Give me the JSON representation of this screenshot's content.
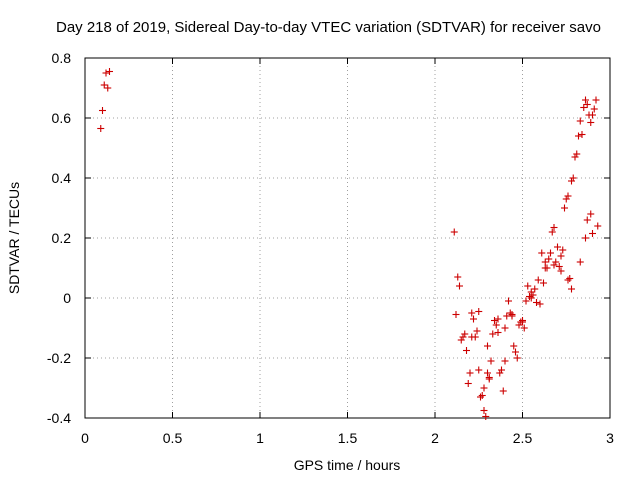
{
  "chart_data": {
    "type": "scatter",
    "title": "Day 218 of 2019, Sidereal Day-to-day VTEC variation (SDTVAR) for receiver savo",
    "xlabel": "GPS time / hours",
    "ylabel": "SDTVAR / TECUs",
    "xlim": [
      0,
      3
    ],
    "ylim": [
      -0.4,
      0.8
    ],
    "xticks": [
      0,
      0.5,
      1,
      1.5,
      2,
      2.5,
      3
    ],
    "xtick_labels": [
      "0",
      "0.5",
      "1",
      "1.5",
      "2",
      "2.5",
      "3"
    ],
    "yticks": [
      -0.4,
      -0.2,
      0,
      0.2,
      0.4,
      0.6,
      0.8
    ],
    "ytick_labels": [
      "-0.4",
      "-0.2",
      "0",
      "0.2",
      "0.4",
      "0.6",
      "0.8"
    ],
    "grid": true,
    "marker": "+",
    "color": "#cc0000",
    "series": [
      {
        "name": "SDTVAR",
        "x": [
          0.09,
          0.1,
          0.11,
          0.12,
          0.13,
          0.14,
          2.11,
          2.12,
          2.13,
          2.14,
          2.15,
          2.16,
          2.17,
          2.18,
          2.19,
          2.2,
          2.21,
          2.22,
          2.23,
          2.24,
          2.25,
          2.26,
          2.27,
          2.28,
          2.29,
          2.3,
          2.31,
          2.32,
          2.33,
          2.34,
          2.35,
          2.36,
          2.37,
          2.38,
          2.39,
          2.4,
          2.41,
          2.42,
          2.43,
          2.44,
          2.45,
          2.46,
          2.47,
          2.48,
          2.49,
          2.5,
          2.51,
          2.52,
          2.53,
          2.54,
          2.55,
          2.56,
          2.57,
          2.58,
          2.59,
          2.6,
          2.61,
          2.62,
          2.63,
          2.64,
          2.65,
          2.66,
          2.67,
          2.68,
          2.69,
          2.7,
          2.71,
          2.72,
          2.73,
          2.74,
          2.75,
          2.76,
          2.77,
          2.78,
          2.79,
          2.8,
          2.81,
          2.82,
          2.83,
          2.84,
          2.85,
          2.86,
          2.87,
          2.88,
          2.89,
          2.9,
          2.91,
          2.92,
          2.21,
          2.25,
          2.28,
          2.31,
          2.36,
          2.44,
          2.5,
          2.63,
          2.72,
          2.78,
          2.83,
          2.87,
          2.9,
          2.93,
          2.3,
          2.4,
          2.55,
          2.68,
          2.76,
          2.86,
          2.89
        ],
        "y": [
          0.565,
          0.625,
          0.71,
          0.75,
          0.7,
          0.755,
          0.22,
          -0.055,
          0.07,
          0.04,
          -0.14,
          -0.13,
          -0.12,
          -0.175,
          -0.285,
          -0.25,
          -0.05,
          -0.07,
          -0.13,
          -0.11,
          -0.24,
          -0.33,
          -0.325,
          -0.375,
          -0.395,
          -0.16,
          -0.265,
          -0.21,
          -0.12,
          -0.075,
          -0.09,
          -0.115,
          -0.25,
          -0.24,
          -0.31,
          -0.21,
          -0.06,
          -0.01,
          -0.05,
          -0.06,
          -0.16,
          -0.18,
          -0.2,
          -0.09,
          -0.08,
          -0.075,
          -0.1,
          -0.01,
          0.04,
          0.005,
          0.02,
          0.01,
          0.03,
          -0.015,
          0.06,
          -0.02,
          0.15,
          0.05,
          0.12,
          0.1,
          0.13,
          0.15,
          0.22,
          0.235,
          0.12,
          0.17,
          0.105,
          0.09,
          0.16,
          0.3,
          0.33,
          0.34,
          0.065,
          0.39,
          0.4,
          0.47,
          0.48,
          0.54,
          0.59,
          0.545,
          0.635,
          0.66,
          0.645,
          0.61,
          0.585,
          0.61,
          0.63,
          0.66,
          -0.13,
          -0.045,
          -0.3,
          -0.27,
          -0.07,
          -0.055,
          -0.08,
          0.1,
          0.14,
          0.03,
          0.12,
          0.26,
          0.215,
          0.24,
          -0.25,
          -0.1,
          0.0,
          0.11,
          0.06,
          0.2,
          0.28
        ]
      }
    ]
  }
}
